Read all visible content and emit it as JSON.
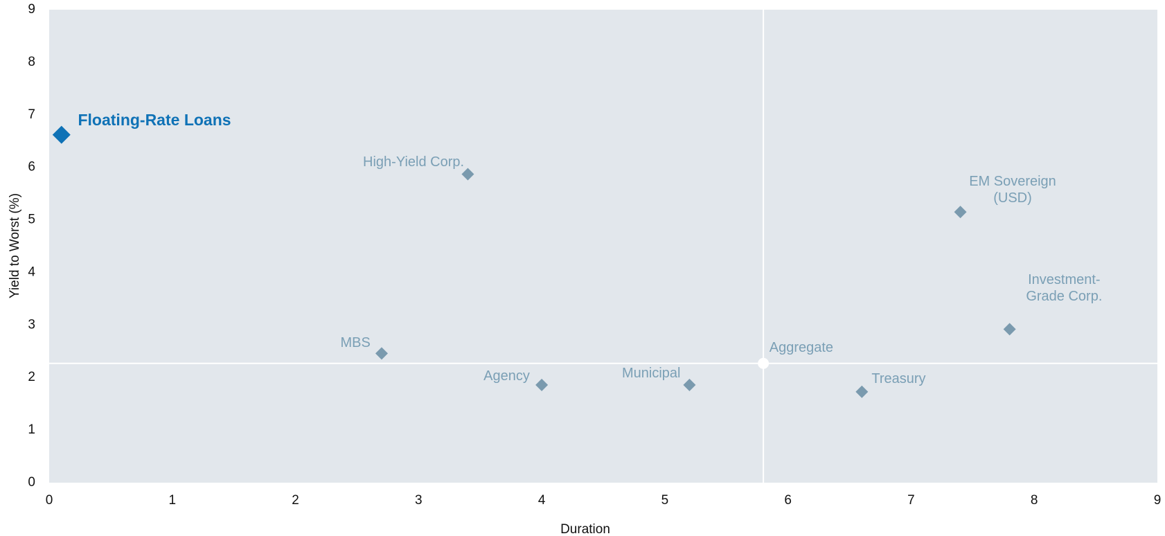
{
  "chart_data": {
    "type": "scatter",
    "x_label": "Duration",
    "y_label": "Yield to Worst (%)",
    "xlim": [
      0,
      9
    ],
    "ylim": [
      0,
      9
    ],
    "xticks": [
      0,
      1,
      2,
      3,
      4,
      5,
      6,
      7,
      8,
      9
    ],
    "yticks": [
      0,
      1,
      2,
      3,
      4,
      5,
      6,
      7,
      8,
      9
    ],
    "background": "#e2e7ec",
    "points": [
      {
        "label": "Floating-Rate Loans",
        "x": 0.1,
        "y": 6.62,
        "color": "#0f72b6",
        "marker": "diamond"
      },
      {
        "label": "High-Yield Corp.",
        "x": 3.4,
        "y": 5.87,
        "color": "#7a9aae",
        "marker": "diamond"
      },
      {
        "label": "EM Sovereign (USD)",
        "x": 7.4,
        "y": 5.15,
        "color": "#7a9aae",
        "marker": "diamond"
      },
      {
        "label": "Investment-Grade Corp.",
        "x": 7.8,
        "y": 2.92,
        "color": "#7a9aae",
        "marker": "diamond"
      },
      {
        "label": "MBS",
        "x": 2.7,
        "y": 2.46,
        "color": "#7a9aae",
        "marker": "diamond"
      },
      {
        "label": "Agency",
        "x": 4.0,
        "y": 1.86,
        "color": "#7a9aae",
        "marker": "diamond"
      },
      {
        "label": "Municipal",
        "x": 5.2,
        "y": 1.86,
        "color": "#7a9aae",
        "marker": "diamond"
      },
      {
        "label": "Treasury",
        "x": 6.6,
        "y": 1.73,
        "color": "#7a9aae",
        "marker": "diamond"
      },
      {
        "label": "Aggregate",
        "x": 5.8,
        "y": 2.27,
        "color": "#ffffff",
        "marker": "circle"
      }
    ]
  }
}
